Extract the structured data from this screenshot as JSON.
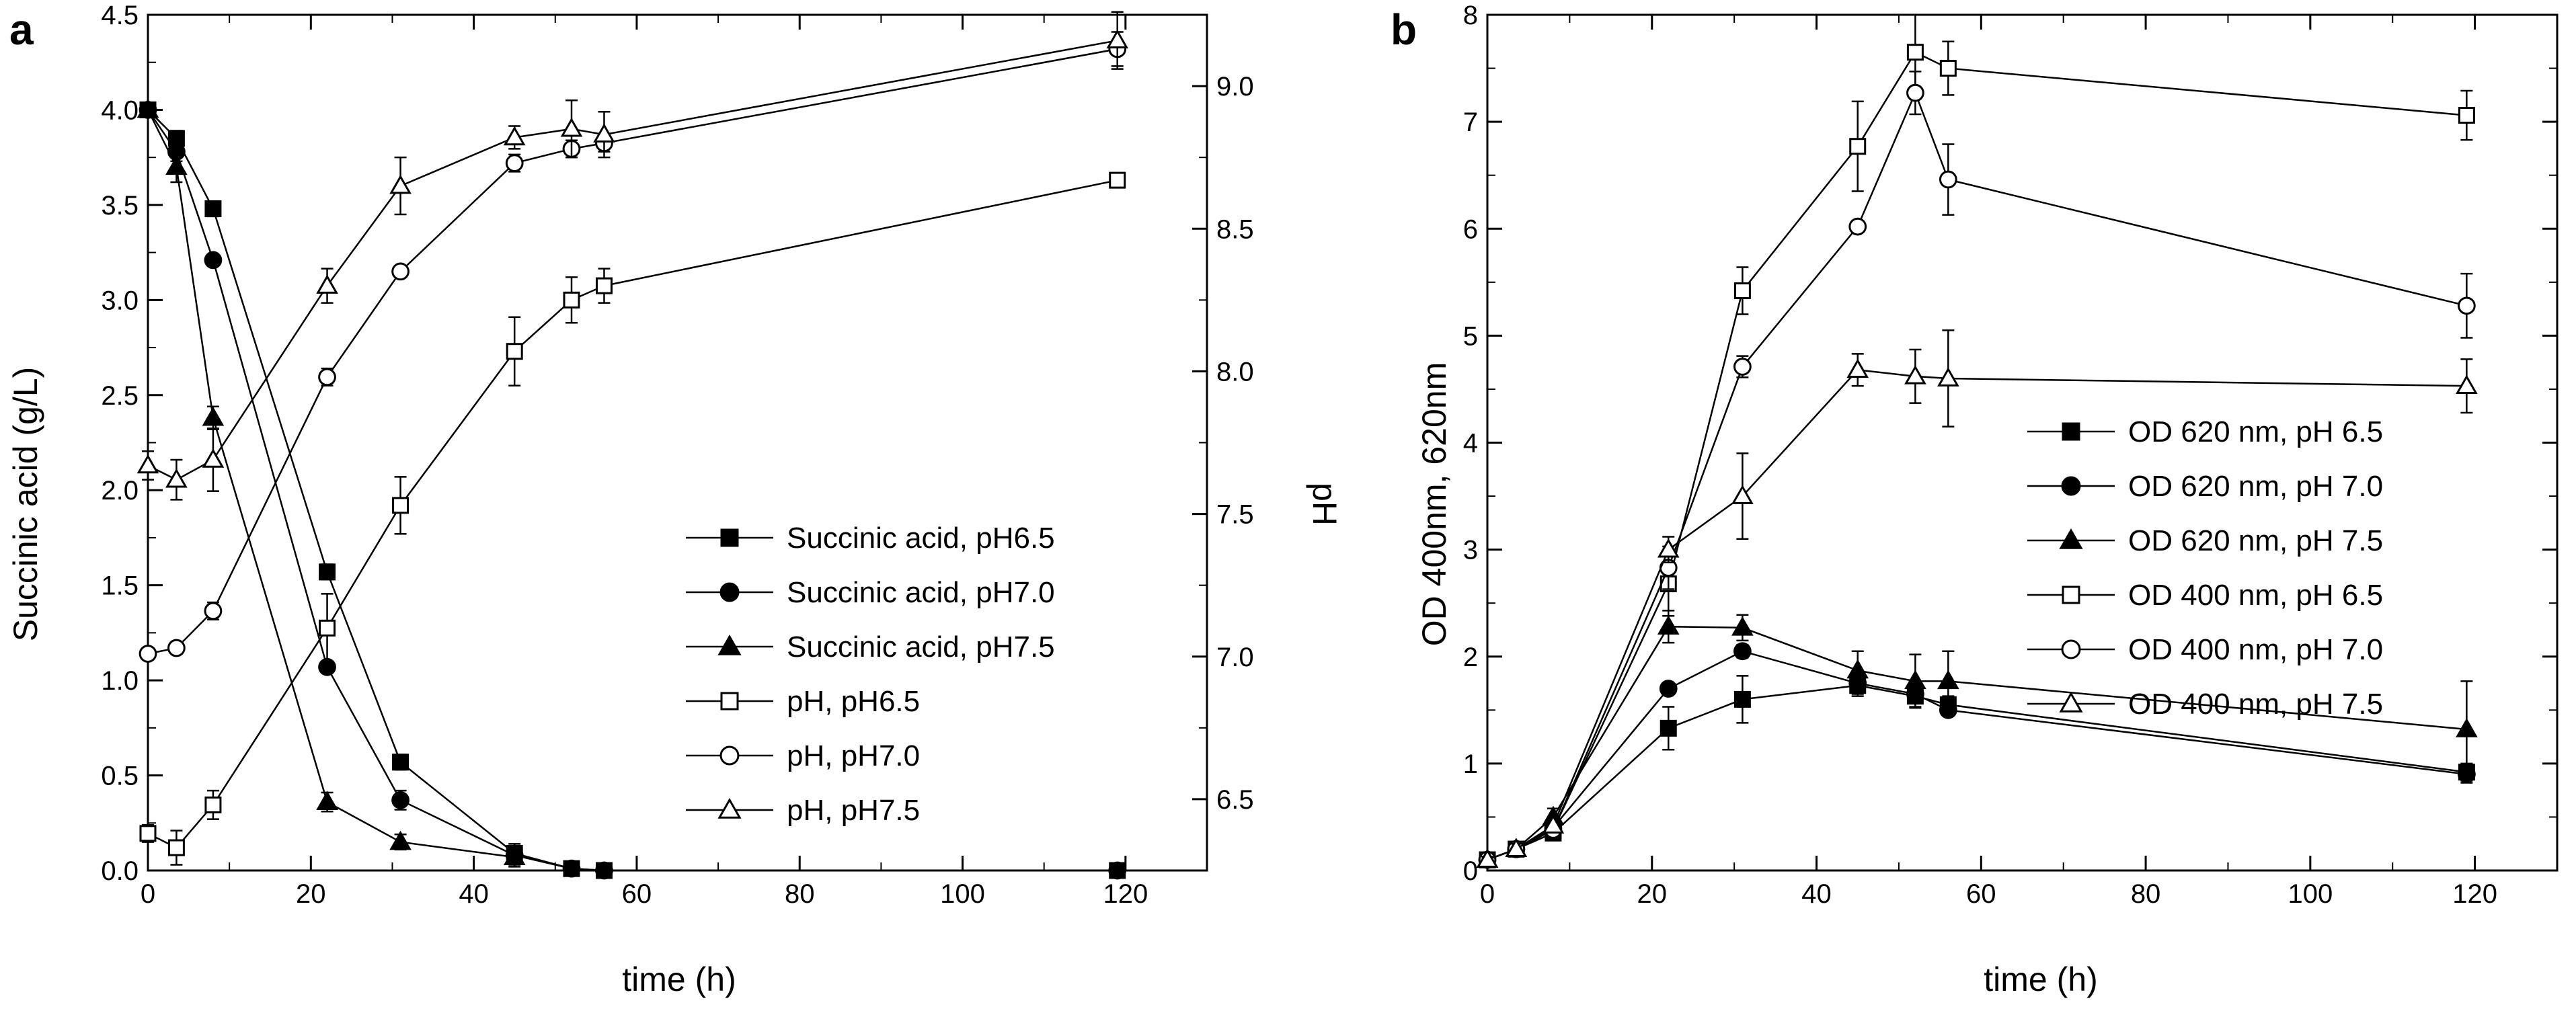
{
  "colors": {
    "ink": "#000000",
    "background": "#ffffff"
  },
  "chart_data": [
    {
      "panel_label": "a",
      "type": "line",
      "xlabel": "time (h)",
      "ylabel": "Succinic acid (g/L)",
      "y2label": "pH",
      "xlim": [
        0,
        130
      ],
      "ylim": [
        0,
        4.5
      ],
      "y2lim": [
        6.25,
        9.25
      ],
      "xticks": [
        0,
        20,
        40,
        60,
        80,
        100,
        120
      ],
      "xtick_labels": [
        "0",
        "20",
        "40",
        "60",
        "80",
        "100",
        "120"
      ],
      "yticks": [
        0,
        0.5,
        1,
        1.5,
        2,
        2.5,
        3,
        3.5,
        4,
        4.5
      ],
      "ytick_labels": [
        "0.0",
        "0.5",
        "1.0",
        "1.5",
        "2.0",
        "2.5",
        "3.0",
        "3.5",
        "4.0",
        "4.5"
      ],
      "y2ticks": [
        6.5,
        7,
        7.5,
        8,
        8.5,
        9
      ],
      "y2tick_labels": [
        "6.5",
        "7.0",
        "7.5",
        "8.0",
        "8.5",
        "9.0"
      ],
      "legend_position": "bottom-right",
      "series": [
        {
          "name": "Succinic acid, pH6.5",
          "axis": "left",
          "marker": "square",
          "filled": true,
          "x": [
            0,
            3.5,
            8,
            22,
            31,
            45,
            52,
            56,
            119
          ],
          "y": [
            4.0,
            3.85,
            3.48,
            1.57,
            0.57,
            0.09,
            0.01,
            0.0,
            0.0
          ],
          "err": [
            0.03,
            0.04,
            0.04,
            0.04,
            0.04,
            0.03,
            0.01,
            0.01,
            0.01
          ]
        },
        {
          "name": "Succinic acid, pH7.0",
          "axis": "left",
          "marker": "circle",
          "filled": true,
          "x": [
            0,
            3.5,
            8,
            22,
            31,
            45,
            52,
            56,
            119
          ],
          "y": [
            4.0,
            3.78,
            3.21,
            1.07,
            0.37,
            0.08,
            0.01,
            0.0,
            0.0
          ],
          "err": [
            0.03,
            0.05,
            0.03,
            0.03,
            0.05,
            0.06,
            0.01,
            0.01,
            0.01
          ]
        },
        {
          "name": "Succinic acid, pH7.5",
          "axis": "left",
          "marker": "triangle",
          "filled": true,
          "x": [
            0,
            3.5,
            8,
            22,
            31,
            45
          ],
          "y": [
            4.0,
            3.7,
            2.38,
            0.36,
            0.15,
            0.07
          ],
          "err": [
            0.03,
            0.08,
            0.06,
            0.05,
            0.04,
            0.04
          ]
        },
        {
          "name": "pH, pH6.5",
          "axis": "right",
          "marker": "square",
          "filled": false,
          "x": [
            0,
            3.5,
            8,
            22,
            31,
            45,
            52,
            56,
            119
          ],
          "y": [
            6.38,
            6.33,
            6.48,
            7.1,
            7.53,
            8.07,
            8.25,
            8.3,
            8.67
          ],
          "err": [
            0.03,
            0.06,
            0.05,
            0.12,
            0.1,
            0.12,
            0.08,
            0.06,
            0.02
          ]
        },
        {
          "name": "pH, pH7.0",
          "axis": "right",
          "marker": "circle",
          "filled": false,
          "x": [
            0,
            3.5,
            8,
            22,
            31,
            45,
            52,
            56,
            119
          ],
          "y": [
            7.01,
            7.03,
            7.16,
            7.98,
            8.35,
            8.73,
            8.78,
            8.8,
            9.13
          ],
          "err": [
            0.02,
            0.02,
            0.03,
            0.03,
            0.02,
            0.03,
            0.03,
            0.03,
            0.06
          ]
        },
        {
          "name": "pH, pH7.5",
          "axis": "right",
          "marker": "triangle",
          "filled": false,
          "x": [
            0,
            3.5,
            8,
            22,
            31,
            45,
            52,
            56,
            119
          ],
          "y": [
            7.67,
            7.62,
            7.69,
            8.3,
            8.65,
            8.82,
            8.85,
            8.83,
            9.16
          ],
          "err": [
            0.05,
            0.07,
            0.11,
            0.06,
            0.1,
            0.04,
            0.1,
            0.08,
            0.1
          ]
        }
      ]
    },
    {
      "panel_label": "b",
      "type": "line",
      "xlabel": "time (h)",
      "ylabel": "OD 400nm, 620nm",
      "xlim": [
        0,
        130
      ],
      "ylim": [
        0,
        8
      ],
      "xticks": [
        0,
        20,
        40,
        60,
        80,
        100,
        120
      ],
      "xtick_labels": [
        "0",
        "20",
        "40",
        "60",
        "80",
        "100",
        "120"
      ],
      "yticks": [
        0,
        1,
        2,
        3,
        4,
        5,
        6,
        7,
        8
      ],
      "ytick_labels": [
        "0",
        "1",
        "2",
        "3",
        "4",
        "5",
        "6",
        "7",
        "8"
      ],
      "legend_position": "middle-right",
      "series": [
        {
          "name": "OD 620 nm, pH 6.5",
          "marker": "square",
          "filled": true,
          "x": [
            0,
            3.5,
            8,
            22,
            31,
            45,
            52,
            56,
            119
          ],
          "y": [
            0.1,
            0.2,
            0.35,
            1.33,
            1.6,
            1.73,
            1.63,
            1.55,
            0.92
          ],
          "err": [
            0.03,
            0.05,
            0.05,
            0.2,
            0.22,
            0.1,
            0.1,
            0.08,
            0.08
          ]
        },
        {
          "name": "OD 620 nm, pH 7.0",
          "marker": "circle",
          "filled": true,
          "x": [
            0,
            3.5,
            8,
            22,
            31,
            45,
            52,
            56,
            119
          ],
          "y": [
            0.1,
            0.2,
            0.4,
            1.7,
            2.05,
            1.75,
            1.65,
            1.5,
            0.9
          ],
          "err": [
            0.03,
            0.05,
            0.06,
            0.05,
            0.06,
            0.1,
            0.05,
            0.05,
            0.08
          ]
        },
        {
          "name": "OD 620 nm, pH 7.5",
          "marker": "triangle",
          "filled": true,
          "x": [
            0,
            3.5,
            8,
            22,
            31,
            45,
            52,
            56,
            119
          ],
          "y": [
            0.1,
            0.2,
            0.5,
            2.28,
            2.27,
            1.87,
            1.77,
            1.77,
            1.32
          ],
          "err": [
            0.03,
            0.05,
            0.08,
            0.15,
            0.12,
            0.18,
            0.25,
            0.28,
            0.45
          ]
        },
        {
          "name": "OD 400 nm, pH 6.5",
          "marker": "square",
          "filled": false,
          "x": [
            0,
            3.5,
            8,
            22,
            31,
            45,
            52,
            56,
            119
          ],
          "y": [
            0.1,
            0.2,
            0.38,
            2.68,
            5.42,
            6.77,
            7.65,
            7.5,
            7.06
          ],
          "err": [
            0.03,
            0.05,
            0.05,
            0.3,
            0.22,
            0.42,
            0.35,
            0.25,
            0.23
          ]
        },
        {
          "name": "OD 400 nm, pH 7.0",
          "marker": "circle",
          "filled": false,
          "x": [
            0,
            3.5,
            8,
            22,
            31,
            45,
            52,
            56,
            119
          ],
          "y": [
            0.1,
            0.2,
            0.38,
            2.83,
            4.71,
            6.02,
            7.27,
            6.46,
            5.28
          ],
          "err": [
            0.03,
            0.05,
            0.05,
            0.2,
            0.1,
            0.05,
            0.2,
            0.33,
            0.3
          ]
        },
        {
          "name": "OD 400 nm, pH 7.5",
          "marker": "triangle",
          "filled": false,
          "x": [
            0,
            3.5,
            8,
            22,
            31,
            45,
            52,
            56,
            119
          ],
          "y": [
            0.1,
            0.2,
            0.42,
            3.0,
            3.5,
            4.68,
            4.62,
            4.6,
            4.53
          ],
          "err": [
            0.03,
            0.05,
            0.06,
            0.12,
            0.4,
            0.15,
            0.25,
            0.45,
            0.25
          ]
        }
      ]
    }
  ]
}
